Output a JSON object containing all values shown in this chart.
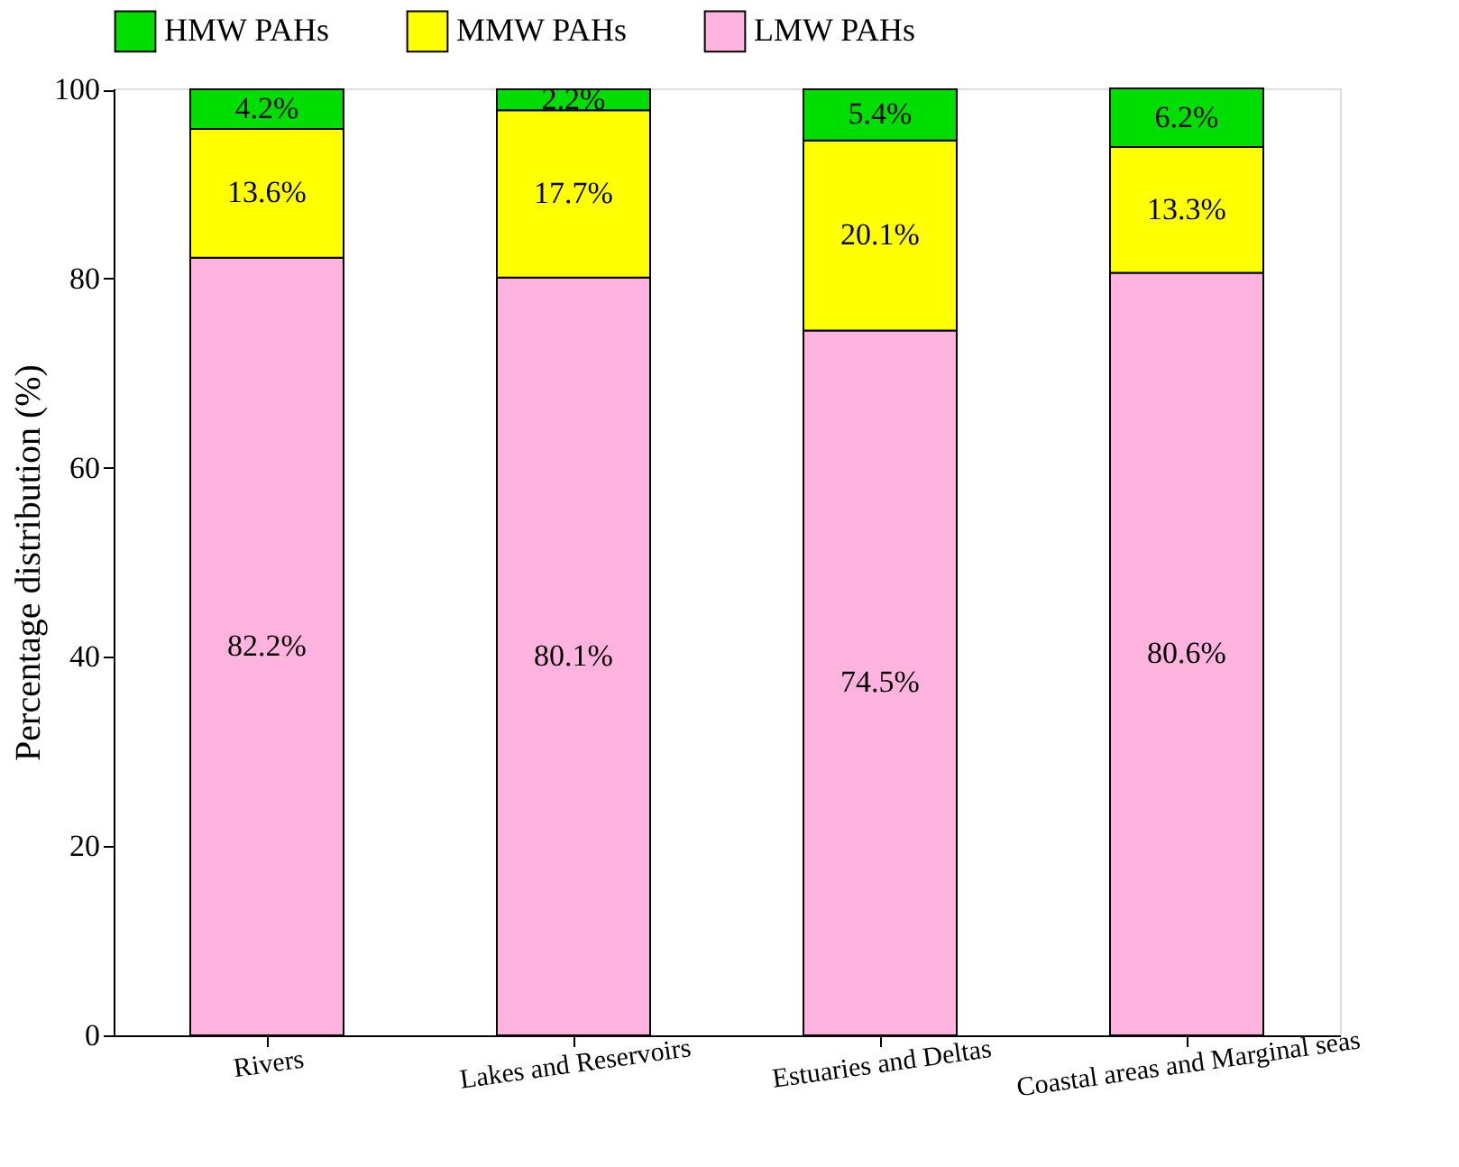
{
  "chart_data": {
    "type": "bar",
    "stacked": true,
    "ylabel": "Percentage distribution (%)",
    "categories": [
      "Rivers",
      "Lakes and Reservoirs",
      "Estuaries and Deltas",
      "Coastal areas and Marginal seas"
    ],
    "series": [
      {
        "name": "LMW PAHs",
        "color": "#ffb3de",
        "values": [
          82.2,
          80.1,
          74.5,
          80.6
        ],
        "value_labels": [
          "82.2%",
          "80.1%",
          "74.5%",
          "80.6%"
        ]
      },
      {
        "name": "MMW PAHs",
        "color": "#ffff00",
        "values": [
          13.6,
          17.7,
          20.1,
          13.3
        ],
        "value_labels": [
          "13.6%",
          "17.7%",
          "20.1%",
          "13.3%"
        ]
      },
      {
        "name": "HMW PAHs",
        "color": "#00dd00",
        "values": [
          4.2,
          2.2,
          5.4,
          6.2
        ],
        "value_labels": [
          "4.2%",
          "2.2%",
          "5.4%",
          "6.2%"
        ]
      }
    ],
    "ylim": [
      0,
      100.1
    ],
    "yticks": [
      0,
      20,
      40,
      60,
      80,
      100
    ],
    "grid": false,
    "legend": "top"
  }
}
